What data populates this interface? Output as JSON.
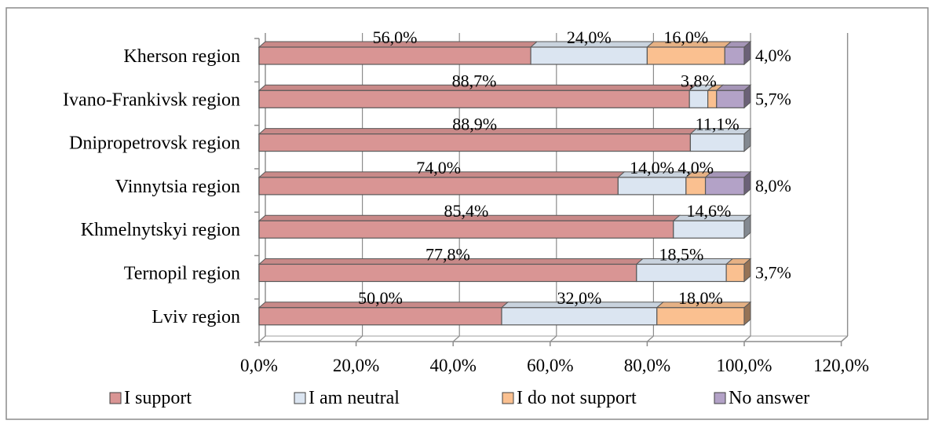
{
  "chart_data": {
    "type": "bar",
    "orientation": "horizontal",
    "stacked": true,
    "three_d": true,
    "categories": [
      "Kherson region",
      "Ivano-Frankivsk region",
      "Dnipropetrovsk region",
      "Vinnytsia region",
      "Khmelnytskyi region",
      "Ternopil region",
      "Lviv region"
    ],
    "series": [
      {
        "name": "I support",
        "color": "#d99594",
        "values": [
          56.0,
          88.7,
          88.9,
          74.0,
          85.4,
          77.8,
          50.0
        ],
        "labels": [
          "56,0%",
          "88,7%",
          "88,9%",
          "74,0%",
          "85,4%",
          "77,8%",
          "50,0%"
        ]
      },
      {
        "name": "I am neutral",
        "color": "#dbe5f1",
        "values": [
          24.0,
          3.8,
          11.1,
          14.0,
          14.6,
          18.5,
          32.0
        ],
        "labels": [
          "24,0%",
          "3,8%",
          "11,1%",
          "14,0%",
          "14,6%",
          "18,5%",
          "32,0%"
        ]
      },
      {
        "name": "I do not support",
        "color": "#fac090",
        "values": [
          16.0,
          1.8,
          0,
          4.0,
          0,
          3.7,
          18.0
        ],
        "labels": [
          "16,0%",
          "",
          "",
          "4,0%",
          "",
          "3,7%",
          "18,0%"
        ]
      },
      {
        "name": "No answer",
        "color": "#b3a2c7",
        "values": [
          4.0,
          5.7,
          0,
          8.0,
          0,
          0,
          0
        ],
        "labels": [
          "4,0%",
          "5,7%",
          "",
          "8,0%",
          "",
          "",
          ""
        ]
      }
    ],
    "x_ticks": [
      "0,0%",
      "20,0%",
      "40,0%",
      "60,0%",
      "80,0%",
      "100,0%",
      "120,0%"
    ],
    "xlim": [
      0,
      120
    ],
    "legend_position": "bottom",
    "grid": true
  }
}
